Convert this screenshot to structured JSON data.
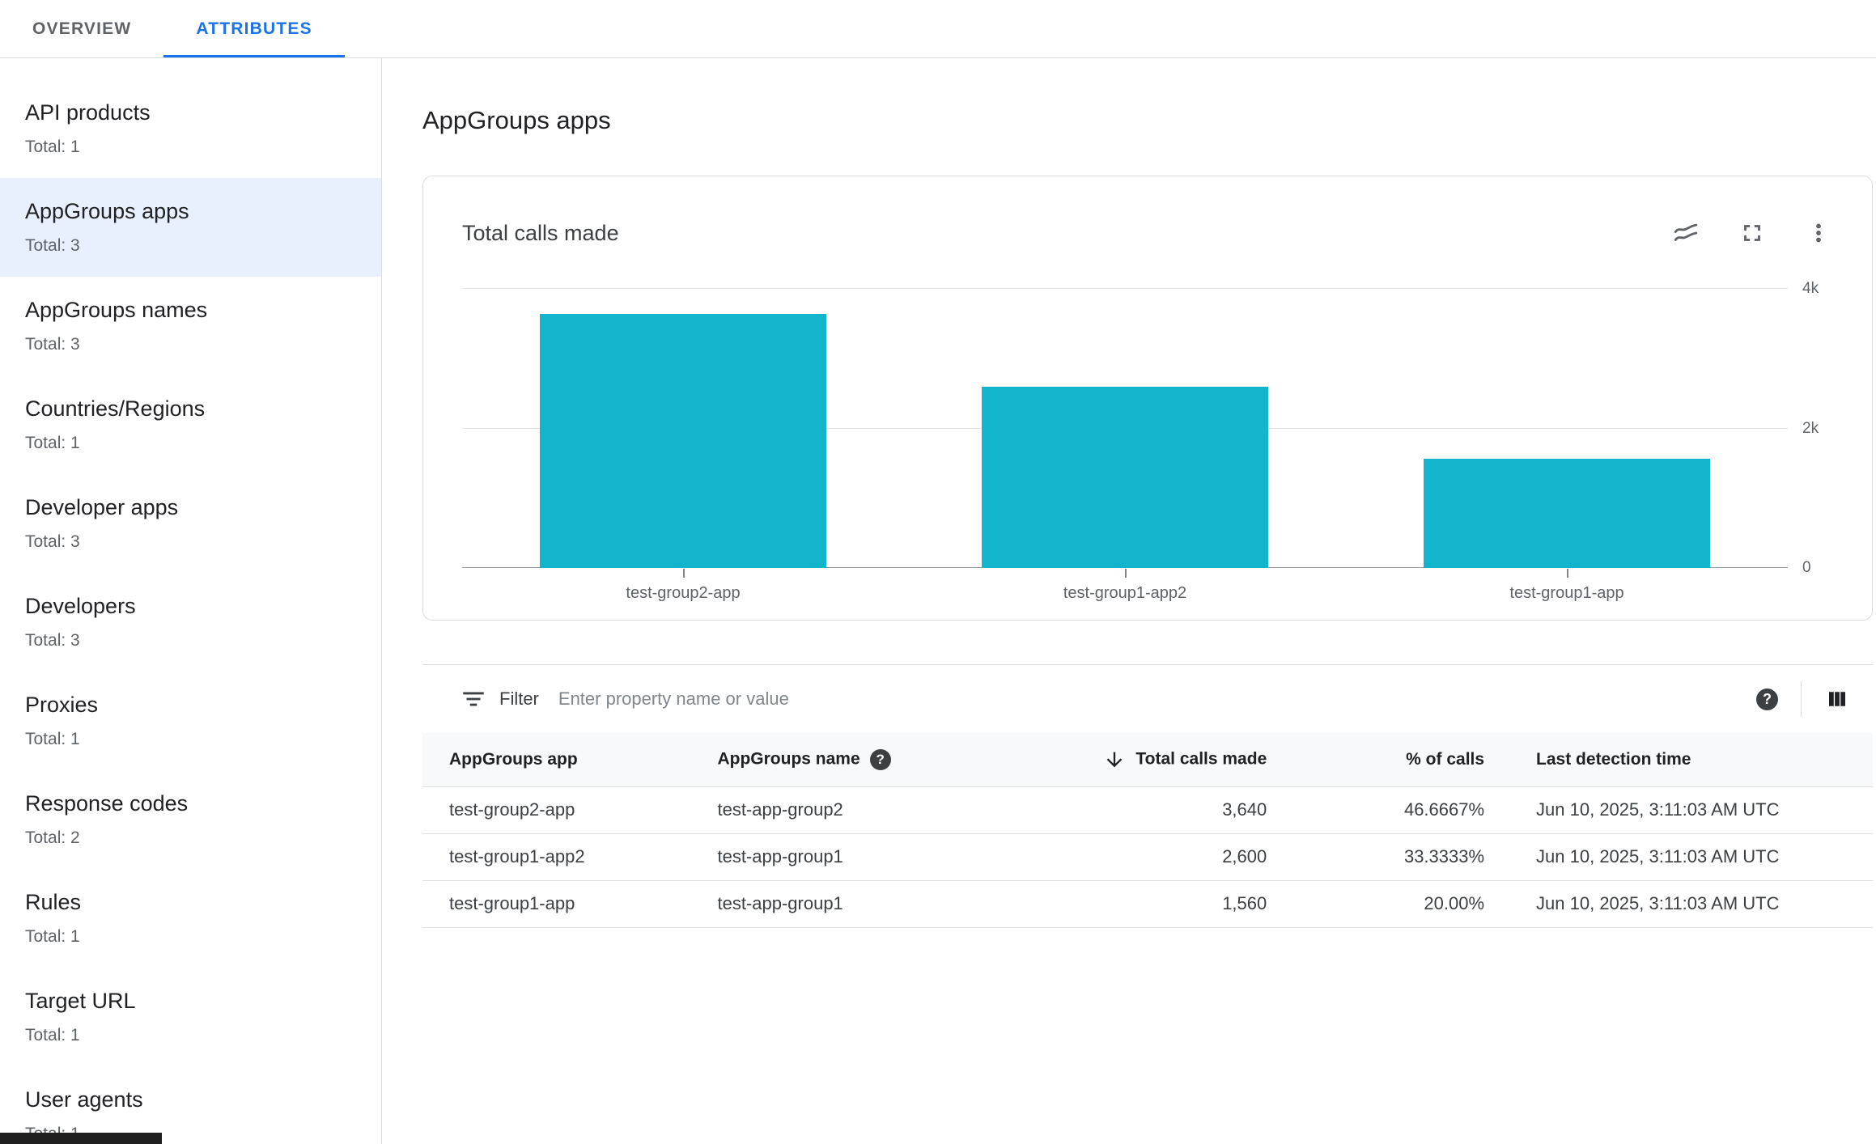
{
  "tabs": [
    {
      "label": "OVERVIEW",
      "active": false
    },
    {
      "label": "ATTRIBUTES",
      "active": true
    }
  ],
  "sidebar": {
    "items": [
      {
        "label": "API products",
        "total": "Total: 1",
        "selected": false
      },
      {
        "label": "AppGroups apps",
        "total": "Total: 3",
        "selected": true
      },
      {
        "label": "AppGroups names",
        "total": "Total: 3",
        "selected": false
      },
      {
        "label": "Countries/Regions",
        "total": "Total: 1",
        "selected": false
      },
      {
        "label": "Developer apps",
        "total": "Total: 3",
        "selected": false
      },
      {
        "label": "Developers",
        "total": "Total: 3",
        "selected": false
      },
      {
        "label": "Proxies",
        "total": "Total: 1",
        "selected": false
      },
      {
        "label": "Response codes",
        "total": "Total: 2",
        "selected": false
      },
      {
        "label": "Rules",
        "total": "Total: 1",
        "selected": false
      },
      {
        "label": "Target URL",
        "total": "Total: 1",
        "selected": false
      },
      {
        "label": "User agents",
        "total": "Total: 1",
        "selected": false
      }
    ]
  },
  "main": {
    "title": "AppGroups apps",
    "chart_card": {
      "title": "Total calls made",
      "icons": [
        "chart-type-icon",
        "fullscreen-icon",
        "more-options-icon"
      ]
    },
    "filter": {
      "label": "Filter",
      "placeholder": "Enter property name or value",
      "icons": [
        "filter-list-icon",
        "help-icon",
        "column-settings-icon"
      ]
    },
    "table": {
      "columns": [
        {
          "label": "AppGroups app",
          "align": "left",
          "help": false,
          "sorted": null
        },
        {
          "label": "AppGroups name",
          "align": "left",
          "help": true,
          "sorted": null
        },
        {
          "label": "Total calls made",
          "align": "right",
          "help": false,
          "sorted": "desc"
        },
        {
          "label": "% of calls",
          "align": "right",
          "help": false,
          "sorted": null
        },
        {
          "label": "Last detection time",
          "align": "left",
          "help": false,
          "sorted": null
        }
      ],
      "rows": [
        [
          "test-group2-app",
          "test-app-group2",
          "3,640",
          "46.6667%",
          "Jun 10, 2025, 3:11:03 AM UTC"
        ],
        [
          "test-group1-app2",
          "test-app-group1",
          "2,600",
          "33.3333%",
          "Jun 10, 2025, 3:11:03 AM UTC"
        ],
        [
          "test-group1-app",
          "test-app-group1",
          "1,560",
          "20.00%",
          "Jun 10, 2025, 3:11:03 AM UTC"
        ]
      ]
    }
  },
  "chart_data": {
    "type": "bar",
    "title": "Total calls made",
    "categories": [
      "test-group2-app",
      "test-group1-app2",
      "test-group1-app"
    ],
    "values": [
      3640,
      2600,
      1560
    ],
    "xlabel": "",
    "ylabel": "",
    "ylim": [
      0,
      4000
    ],
    "yticks": [
      {
        "value": 0,
        "label": "0"
      },
      {
        "value": 2000,
        "label": "2k"
      },
      {
        "value": 4000,
        "label": "4k"
      }
    ],
    "bar_color": "#12b5cb",
    "grid": true,
    "axis_labels_position": "right",
    "legend": false
  },
  "colors": {
    "accent": "#1a73e8",
    "selected_bg": "#e8f0fe",
    "bar": "#12b5cb",
    "border": "#dadce0",
    "text_primary": "#202124",
    "text_secondary": "#5f6368"
  }
}
